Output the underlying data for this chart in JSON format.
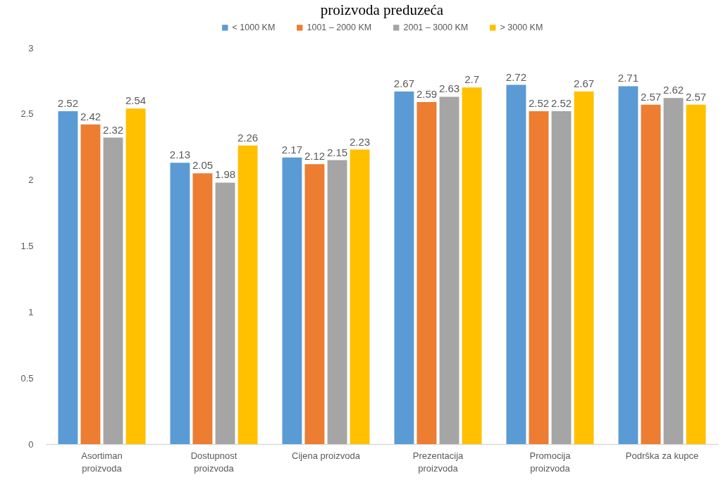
{
  "chart_data": {
    "type": "bar",
    "title": "proizvoda preduzeća",
    "categories": [
      "Asortiman proizvoda",
      "Dostupnost proizvoda",
      "Cijena proizvoda",
      "Prezentacija proizvoda",
      "Promocija proizvoda",
      "Podrška za kupce"
    ],
    "series": [
      {
        "name": "< 1000 KM",
        "color": "#5b9bd5",
        "values": [
          2.52,
          2.13,
          2.17,
          2.67,
          2.72,
          2.71
        ]
      },
      {
        "name": "1001 – 2000 KM",
        "color": "#ed7d31",
        "values": [
          2.42,
          2.05,
          2.12,
          2.59,
          2.52,
          2.57
        ]
      },
      {
        "name": "2001 – 3000 KM",
        "color": "#a5a5a5",
        "values": [
          2.32,
          1.98,
          2.15,
          2.63,
          2.52,
          2.62
        ]
      },
      {
        "name": "> 3000 KM",
        "color": "#ffc000",
        "values": [
          2.54,
          2.26,
          2.23,
          2.7,
          2.67,
          2.57
        ]
      }
    ],
    "ylim": [
      0,
      3
    ],
    "yticks": [
      0,
      0.5,
      1,
      1.5,
      2,
      2.5,
      3
    ],
    "grid": false,
    "legend": "top",
    "data_labels": true
  }
}
